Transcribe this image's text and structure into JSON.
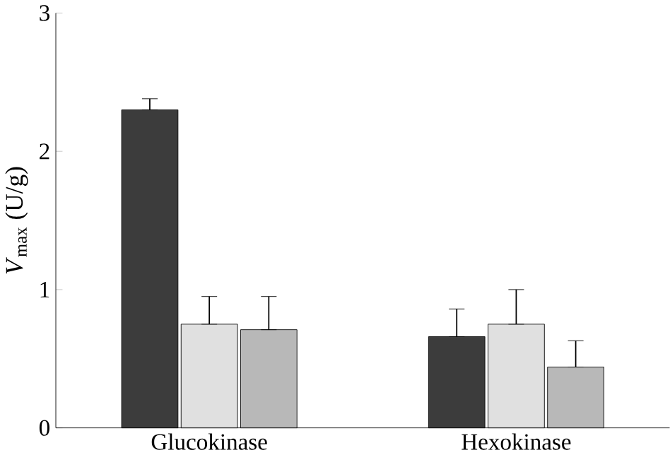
{
  "chart_data": {
    "type": "bar",
    "ylabel": "*V*$_{max}$ (U/g)",
    "categories": [
      "Glucokinase",
      "Hexokinase"
    ],
    "series": [
      {
        "color": "#3c3c3c",
        "values": [
          2.3,
          0.66
        ],
        "errors": [
          [
            2.3,
            2.38
          ],
          [
            0.66,
            0.86
          ]
        ]
      },
      {
        "color": "#e0e0e0",
        "values": [
          0.75,
          0.75
        ],
        "errors": [
          [
            0.75,
            0.95
          ],
          [
            0.75,
            1.0
          ]
        ]
      },
      {
        "color": "#b8b8b8",
        "values": [
          0.71,
          0.44
        ],
        "errors": [
          [
            0.71,
            0.95
          ],
          [
            0.44,
            0.63
          ]
        ]
      }
    ],
    "ylim": [
      0,
      3
    ],
    "yticks": [
      0,
      1,
      2,
      3
    ]
  }
}
